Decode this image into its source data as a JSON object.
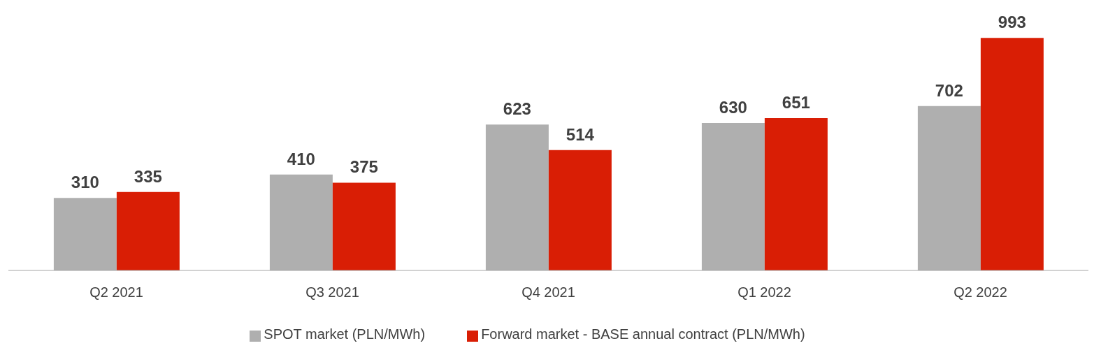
{
  "chart_data": {
    "type": "bar",
    "categories": [
      "Q2 2021",
      "Q3 2021",
      "Q4 2021",
      "Q1 2022",
      "Q2 2022"
    ],
    "series": [
      {
        "name": "SPOT market (PLN/MWh)",
        "color": "#afafaf",
        "values": [
          310,
          410,
          623,
          630,
          702
        ]
      },
      {
        "name": "Forward market - BASE annual contract (PLN/MWh)",
        "color": "#d91e05",
        "values": [
          335,
          375,
          514,
          651,
          993
        ]
      }
    ],
    "data_labels": true,
    "grid": false,
    "legend": "bottom",
    "tick_labels": "x"
  }
}
